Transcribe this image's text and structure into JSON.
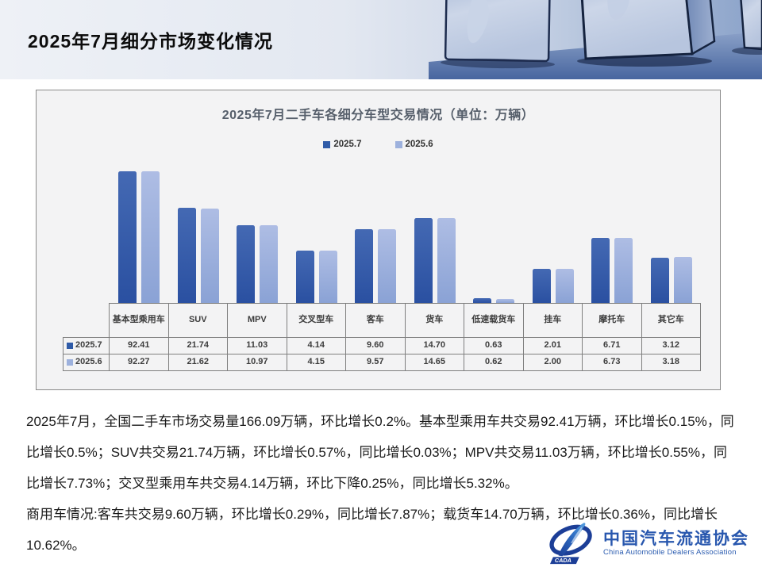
{
  "page": {
    "title": "2025年7月细分市场变化情况"
  },
  "chart_data": {
    "type": "bar",
    "title": "2025年7月二手车各细分车型交易情况（单位：万辆）",
    "categories": [
      "基本型乘用车",
      "SUV",
      "MPV",
      "交叉型车",
      "客车",
      "货车",
      "低速载货车",
      "挂车",
      "摩托车",
      "其它车"
    ],
    "series": [
      {
        "name": "2025.7",
        "color": "#2f5ba8",
        "values": [
          92.41,
          21.74,
          11.03,
          4.14,
          9.6,
          14.7,
          0.63,
          2.01,
          6.71,
          3.12
        ]
      },
      {
        "name": "2025.6",
        "color": "#9db1dd",
        "values": [
          92.27,
          21.62,
          10.97,
          4.15,
          9.57,
          14.65,
          0.62,
          2.0,
          6.73,
          3.18
        ]
      }
    ],
    "value_axis": "hidden",
    "scale": "log",
    "grid": false,
    "legend_position": "top",
    "data_table_shown": true
  },
  "paragraphs": [
    "2025年7月，全国二手车市场交易量166.09万辆，环比增长0.2%。基本型乘用车共交易92.41万辆，环比增长0.15%，同比增长0.5%；SUV共交易21.74万辆，环比增长0.57%，同比增长0.03%；MPV共交易11.03万辆，环比增长0.55%，同比增长7.73%；交叉型乘用车共交易4.14万辆，环比下降0.25%，同比增长5.32%。",
    "商用车情况:客车共交易9.60万辆，环比增长0.29%，同比增长7.87%；载货车14.70万辆，环比增长0.36%，同比增长10.62%。"
  ],
  "logo": {
    "badge": "CADA",
    "name_cn": "中国汽车流通协会",
    "name_en": "China Automobile Dealers Association"
  },
  "colors": {
    "series_dark": "#2f5ba8",
    "series_light": "#9db1dd",
    "panel_bg": "#f3f3f4",
    "table_border": "#7f7f7f",
    "logo_blue": "#2857ae"
  }
}
